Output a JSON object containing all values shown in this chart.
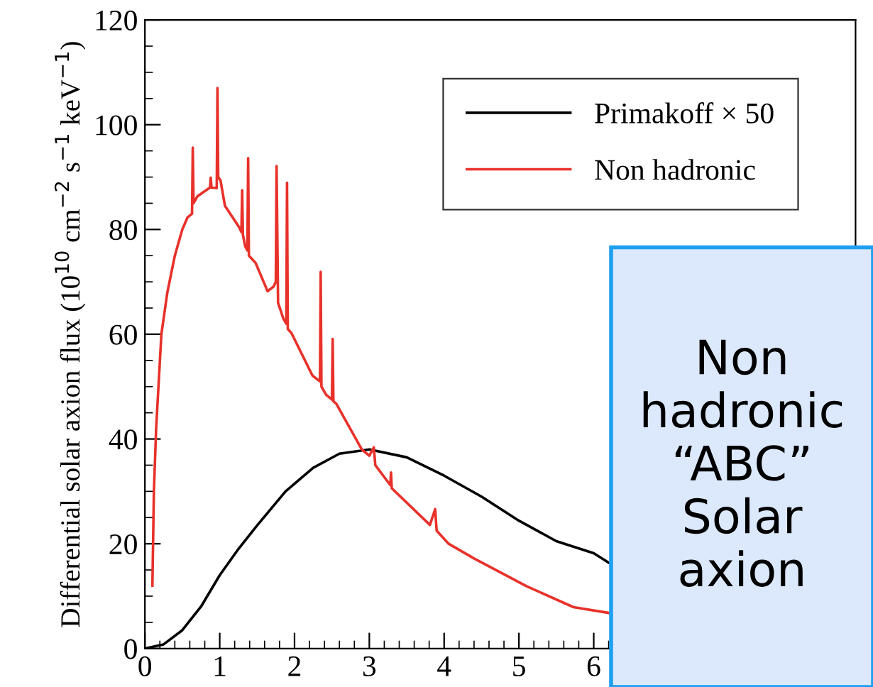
{
  "chart_data": {
    "type": "line",
    "ylabel": "Differential solar axion flux (10$^{10}$ cm$^{−2}$ s$^{−1}$ keV$^{−1}$)",
    "xlim": [
      0,
      9.5
    ],
    "xticks": [
      0,
      1,
      2,
      3,
      4,
      5,
      6
    ],
    "ylim": [
      0,
      120
    ],
    "yticks": [
      0,
      20,
      40,
      60,
      80,
      100,
      120
    ],
    "grid": false,
    "legend": "top right",
    "marker": "none",
    "line_style": "solid",
    "annotations": [
      "Non hadronic “ABC” Solar axion"
    ],
    "series": [
      {
        "name": "Primakoff × 50",
        "color": "#000000",
        "x": [
          0,
          0.25,
          0.5,
          0.75,
          1,
          1.25,
          1.5,
          1.88,
          2.25,
          2.6,
          3,
          3.5,
          4,
          4.5,
          5,
          5.5,
          6,
          6.2
        ],
        "values": [
          0,
          0.8,
          3.5,
          8,
          14,
          19,
          23.5,
          30,
          34.5,
          37.2,
          38,
          36.5,
          33,
          29,
          24.4,
          20.5,
          18.2,
          16.4
        ]
      },
      {
        "name": "Non hadronic",
        "color": "#e8312a",
        "x": [
          0.1,
          0.12,
          0.15,
          0.22,
          0.3,
          0.4,
          0.5,
          0.57,
          0.63,
          0.64,
          0.65,
          0.7,
          0.87,
          0.88,
          0.89,
          0.96,
          0.97,
          0.98,
          1.01,
          1.07,
          1.26,
          1.29,
          1.3,
          1.31,
          1.34,
          1.37,
          1.38,
          1.39,
          1.48,
          1.64,
          1.72,
          1.75,
          1.76,
          1.78,
          1.85,
          1.89,
          1.9,
          1.91,
          1.96,
          2.24,
          2.34,
          2.35,
          2.36,
          2.42,
          2.5,
          2.51,
          2.52,
          2.56,
          2.9,
          3.0,
          3.06,
          3.08,
          3.28,
          3.29,
          3.3,
          3.81,
          3.88,
          3.9,
          4.06,
          4.4,
          5.1,
          5.73,
          6.2
        ],
        "values": [
          12,
          30,
          42,
          60,
          68,
          75,
          80,
          82.3,
          83,
          95.6,
          85,
          86.3,
          88,
          89.9,
          88,
          87.9,
          107,
          90,
          89.4,
          84.5,
          80.4,
          79.5,
          87.5,
          79,
          76.8,
          76,
          93.6,
          75,
          73.6,
          68.2,
          69.1,
          70,
          92.1,
          66,
          63,
          62,
          88.9,
          61,
          60.2,
          52.1,
          51,
          71.9,
          50,
          48.5,
          47.5,
          59.1,
          47.2,
          46.7,
          38,
          36.8,
          38.4,
          35,
          31.2,
          33.6,
          30.6,
          23.6,
          26.6,
          22.5,
          20,
          17.2,
          11.9,
          7.9,
          6.8
        ]
      }
    ]
  }
}
